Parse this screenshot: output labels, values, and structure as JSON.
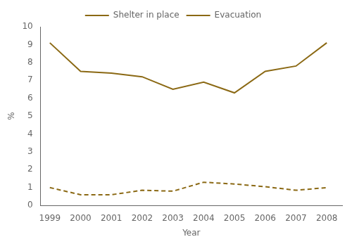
{
  "chart_data": {
    "type": "line",
    "x": [
      1999,
      2000,
      2001,
      2002,
      2003,
      2004,
      2005,
      2006,
      2007,
      2008
    ],
    "series": [
      {
        "name": "Shelter in place",
        "color": "#8B6914",
        "line_style": "solid",
        "values": [
          9.1,
          7.5,
          7.4,
          7.2,
          6.5,
          6.9,
          6.3,
          7.5,
          7.8,
          9.1
        ]
      },
      {
        "name": "Evacuation",
        "color": "#8B6914",
        "line_style": "dashed",
        "values": [
          1.0,
          0.6,
          0.6,
          0.85,
          0.8,
          1.3,
          1.2,
          1.05,
          0.85,
          1.0
        ]
      }
    ],
    "xlabel": "Year",
    "ylabel": "%",
    "xlim": [
      1998.7,
      2008.5
    ],
    "xticks": [
      1999,
      2000,
      2001,
      2002,
      2003,
      2004,
      2005,
      2006,
      2007,
      2008
    ],
    "ylim": [
      0,
      10
    ],
    "yticks": [
      0,
      1,
      2,
      3,
      4,
      5,
      6,
      7,
      8,
      9,
      10
    ],
    "grid": false,
    "legend": "top"
  }
}
